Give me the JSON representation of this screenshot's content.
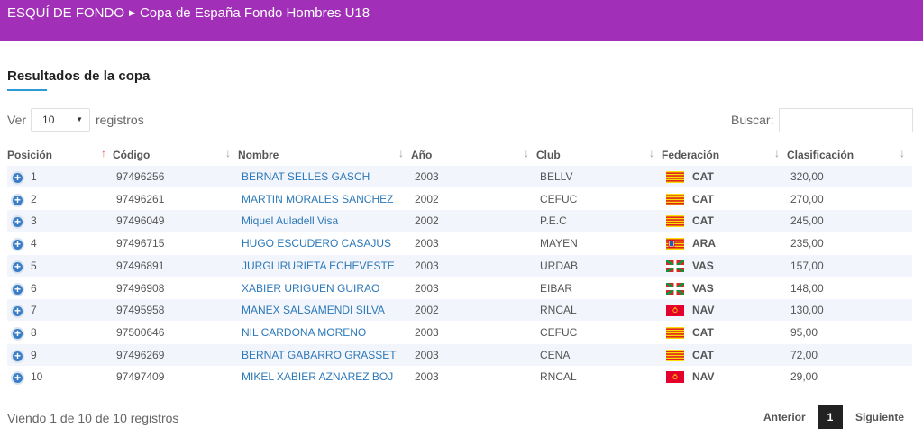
{
  "breadcrumb": {
    "parent": "ESQUÍ DE FONDO",
    "current": "Copa de España Fondo Hombres U18"
  },
  "section_title": "Resultados de la copa",
  "length": {
    "prefix": "Ver",
    "value": "10",
    "suffix": "registros"
  },
  "search": {
    "label": "Buscar:",
    "value": ""
  },
  "table": {
    "columns": [
      "Posición",
      "Código",
      "Nombre",
      "Año",
      "Club",
      "Federación",
      "Clasificación"
    ],
    "rows": [
      {
        "pos": "1",
        "code": "97496256",
        "name": "BERNAT SELLES GASCH",
        "year": "2003",
        "club": "BELLV",
        "fed": "CAT",
        "flag": "cat",
        "score": "320,00"
      },
      {
        "pos": "2",
        "code": "97496261",
        "name": "MARTIN MORALES SANCHEZ",
        "year": "2002",
        "club": "CEFUC",
        "fed": "CAT",
        "flag": "cat",
        "score": "270,00"
      },
      {
        "pos": "3",
        "code": "97496049",
        "name": "Miquel Auladell Visa",
        "year": "2002",
        "club": "P.E.C",
        "fed": "CAT",
        "flag": "cat",
        "score": "245,00"
      },
      {
        "pos": "4",
        "code": "97496715",
        "name": "HUGO ESCUDERO CASAJUS",
        "year": "2003",
        "club": "MAYEN",
        "fed": "ARA",
        "flag": "ara",
        "score": "235,00"
      },
      {
        "pos": "5",
        "code": "97496891",
        "name": "JURGI IRURIETA ECHEVESTE",
        "year": "2003",
        "club": "URDAB",
        "fed": "VAS",
        "flag": "vas",
        "score": "157,00"
      },
      {
        "pos": "6",
        "code": "97496908",
        "name": "XABIER URIGUEN GUIRAO",
        "year": "2003",
        "club": "EIBAR",
        "fed": "VAS",
        "flag": "vas",
        "score": "148,00"
      },
      {
        "pos": "7",
        "code": "97495958",
        "name": "MANEX SALSAMENDI SILVA",
        "year": "2002",
        "club": "RNCAL",
        "fed": "NAV",
        "flag": "nav",
        "score": "130,00"
      },
      {
        "pos": "8",
        "code": "97500646",
        "name": "NIL CARDONA MORENO",
        "year": "2003",
        "club": "CEFUC",
        "fed": "CAT",
        "flag": "cat",
        "score": "95,00"
      },
      {
        "pos": "9",
        "code": "97496269",
        "name": "BERNAT GABARRO GRASSET",
        "year": "2003",
        "club": "CENA",
        "fed": "CAT",
        "flag": "cat",
        "score": "72,00"
      },
      {
        "pos": "10",
        "code": "97497409",
        "name": "MIKEL XABIER AZNAREZ BOJ",
        "year": "2003",
        "club": "RNCAL",
        "fed": "NAV",
        "flag": "nav",
        "score": "29,00"
      }
    ]
  },
  "info": "Viendo 1 de 10 de 10 registros",
  "pagination": {
    "prev": "Anterior",
    "current": "1",
    "next": "Siguiente"
  },
  "colors": {
    "header_bg": "#a12fb7",
    "accent": "#2f9ad8",
    "link": "#2c78b8",
    "row_stripe": "#f2f5fb",
    "sort_active": "#e35f5f",
    "pager_active": "#222222"
  }
}
